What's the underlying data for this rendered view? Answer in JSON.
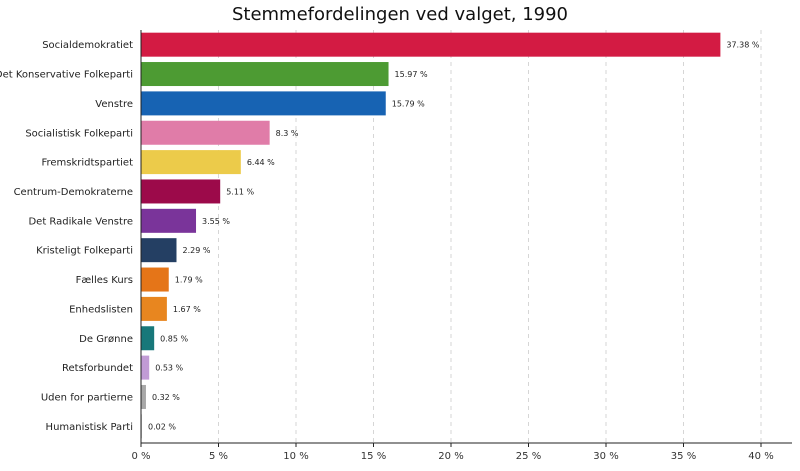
{
  "chart_data": {
    "type": "bar",
    "orientation": "horizontal",
    "title": "Stemmefordelingen ved valget, 1990",
    "xlabel": "",
    "ylabel": "",
    "xlim": [
      0,
      42
    ],
    "xticks": [
      0,
      5,
      10,
      15,
      20,
      25,
      30,
      35,
      40
    ],
    "xtick_labels": [
      "0 %",
      "5 %",
      "10 %",
      "15 %",
      "20 %",
      "25 %",
      "30 %",
      "35 %",
      "40 %"
    ],
    "grid": "vertical dashed",
    "categories": [
      "Socialdemokratiet",
      "Det Konservative Folkeparti",
      "Venstre",
      "Socialistisk Folkeparti",
      "Fremskridtspartiet",
      "Centrum-Demokraterne",
      "Det Radikale Venstre",
      "Kristeligt Folkeparti",
      "Fælles Kurs",
      "Enhedslisten",
      "De Grønne",
      "Retsforbundet",
      "Uden for partierne",
      "Humanistisk Parti"
    ],
    "values": [
      37.38,
      15.97,
      15.79,
      8.3,
      6.44,
      5.11,
      3.55,
      2.29,
      1.79,
      1.67,
      0.85,
      0.53,
      0.32,
      0.02
    ],
    "value_labels": [
      "37.38 %",
      "15.97 %",
      "15.79 %",
      "8.3 %",
      "6.44 %",
      "5.11 %",
      "3.55 %",
      "2.29 %",
      "1.79 %",
      "1.67 %",
      "0.85 %",
      "0.53 %",
      "0.32 %",
      "0.02 %"
    ],
    "colors": [
      "#d31b43",
      "#4d9b33",
      "#1763b3",
      "#e07ca8",
      "#eccb4a",
      "#9c0a4a",
      "#7a349a",
      "#243f63",
      "#e57518",
      "#e8861f",
      "#18787a",
      "#c19bd5",
      "#a8a8a8",
      "#cfcfcf"
    ]
  }
}
